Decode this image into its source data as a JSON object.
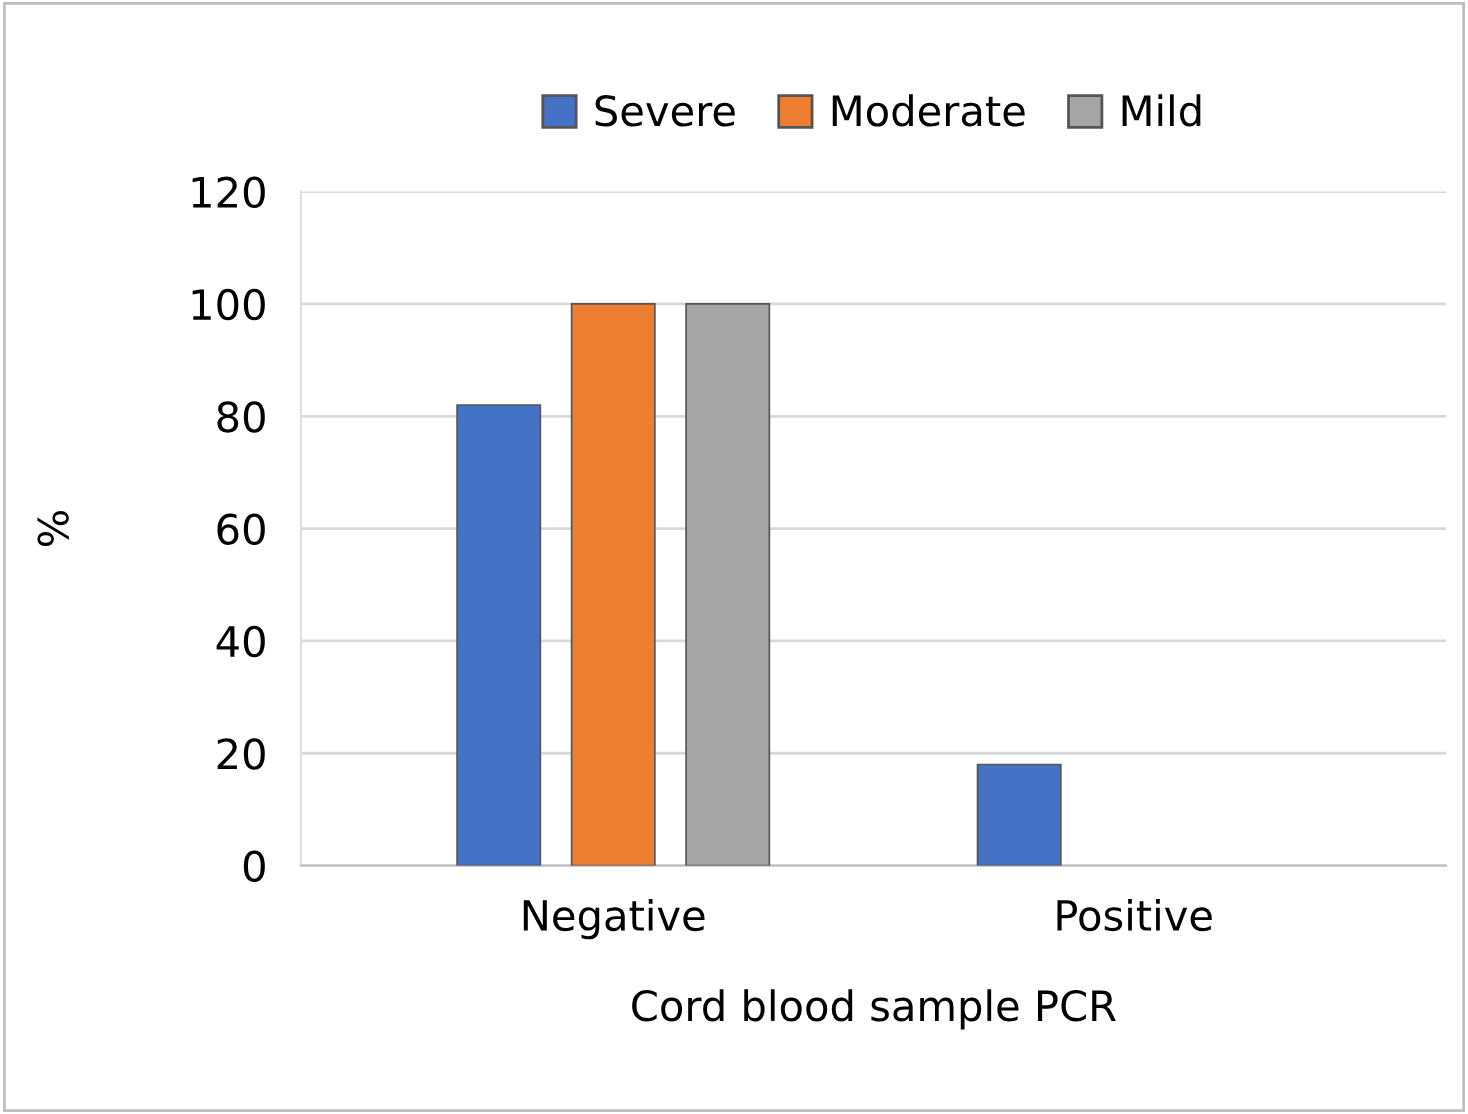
{
  "chart_data": {
    "type": "bar",
    "xlabel": "Cord blood sample PCR",
    "ylabel": "%",
    "categories": [
      "Negative",
      "Positive"
    ],
    "series": [
      {
        "name": "Severe",
        "color": "#4472c4",
        "values": [
          82,
          18
        ]
      },
      {
        "name": "Moderate",
        "color": "#ed7d31",
        "values": [
          100,
          null
        ]
      },
      {
        "name": "Mild",
        "color": "#a5a5a5",
        "values": [
          100,
          null
        ]
      }
    ],
    "ylim": [
      0,
      120
    ],
    "yticks": [
      0,
      20,
      40,
      60,
      80,
      100,
      120
    ],
    "grid": "y",
    "legend": "top"
  }
}
